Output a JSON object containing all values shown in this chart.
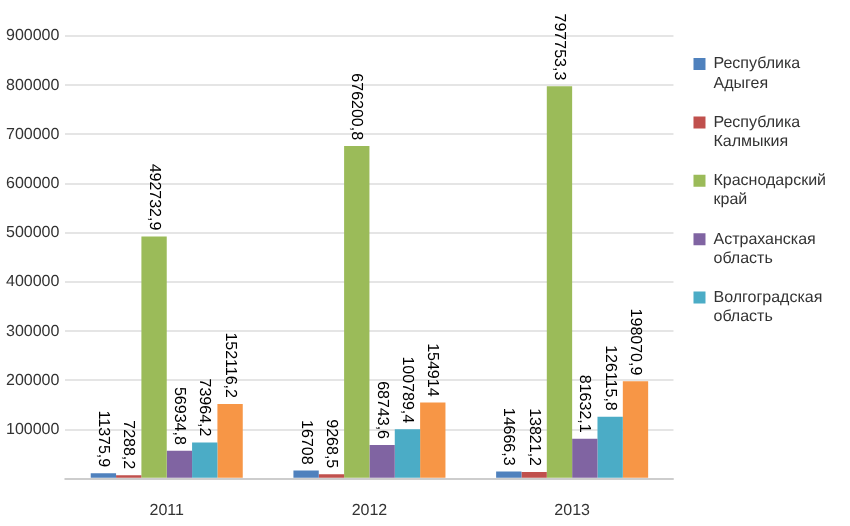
{
  "chart_data": {
    "type": "bar",
    "categories": [
      "2011",
      "2012",
      "2013"
    ],
    "series": [
      {
        "name": "Республика Адыгея",
        "color": "#4f81bd",
        "values": [
          11375.9,
          16708,
          14666.3
        ],
        "value_labels": [
          "11375,9",
          "16708",
          "14666,3"
        ]
      },
      {
        "name": "Республика Калмыкия",
        "color": "#c0504d",
        "values": [
          7288.2,
          9268.5,
          13821.2
        ],
        "value_labels": [
          "7288,2",
          "9268,5",
          "13821,2"
        ]
      },
      {
        "name": "Краснодарский край",
        "color": "#9bbb59",
        "values": [
          492732.9,
          676200.8,
          797753.3
        ],
        "value_labels": [
          "492732,9",
          "676200,8",
          "797753,3"
        ]
      },
      {
        "name": "Астраханская область",
        "color": "#8064a2",
        "values": [
          56934.8,
          68743.6,
          81632.1
        ],
        "value_labels": [
          "56934,8",
          "68743,6",
          "81632,1"
        ]
      },
      {
        "name": "Волгоградская область",
        "color": "#4bacc6",
        "values": [
          73964.2,
          100789.4,
          126115.8
        ],
        "value_labels": [
          "73964,2",
          "100789,4",
          "126115,8"
        ]
      },
      {
        "color": "#f79646",
        "values": [
          152116.2,
          154914,
          198070.9
        ],
        "value_labels": [
          "152116,2",
          "154914",
          "198070,9"
        ]
      }
    ],
    "ylim": [
      0,
      900000
    ],
    "yticks": [
      {
        "value": 0,
        "label": null
      },
      100000,
      200000,
      300000,
      400000,
      500000,
      600000,
      700000,
      800000,
      900000
    ],
    "grid": "y",
    "legend": "right"
  }
}
